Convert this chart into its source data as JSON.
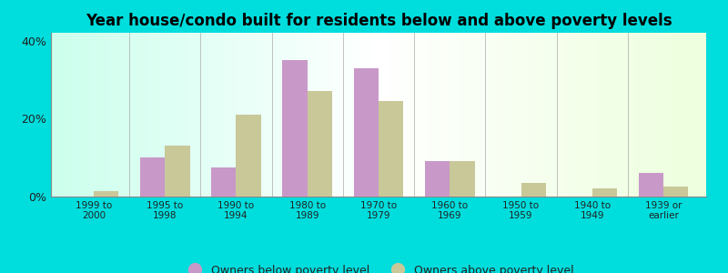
{
  "title": "Year house/condo built for residents below and above poverty levels",
  "categories": [
    "1999 to\n2000",
    "1995 to\n1998",
    "1990 to\n1994",
    "1980 to\n1989",
    "1970 to\n1979",
    "1960 to\n1969",
    "1950 to\n1959",
    "1940 to\n1949",
    "1939 or\nearlier"
  ],
  "below_poverty": [
    0.0,
    10.0,
    7.5,
    35.0,
    33.0,
    9.0,
    0.0,
    0.0,
    6.0
  ],
  "above_poverty": [
    1.5,
    13.0,
    21.0,
    27.0,
    24.5,
    9.0,
    3.5,
    2.0,
    2.5
  ],
  "below_color": "#c899c8",
  "above_color": "#c8c899",
  "ylim": [
    0,
    42
  ],
  "yticks": [
    0,
    20,
    40
  ],
  "ytick_labels": [
    "0%",
    "20%",
    "40%"
  ],
  "legend_below": "Owners below poverty level",
  "legend_above": "Owners above poverty level",
  "background_outer": "#00dddd",
  "title_fontsize": 12,
  "bar_width": 0.35
}
